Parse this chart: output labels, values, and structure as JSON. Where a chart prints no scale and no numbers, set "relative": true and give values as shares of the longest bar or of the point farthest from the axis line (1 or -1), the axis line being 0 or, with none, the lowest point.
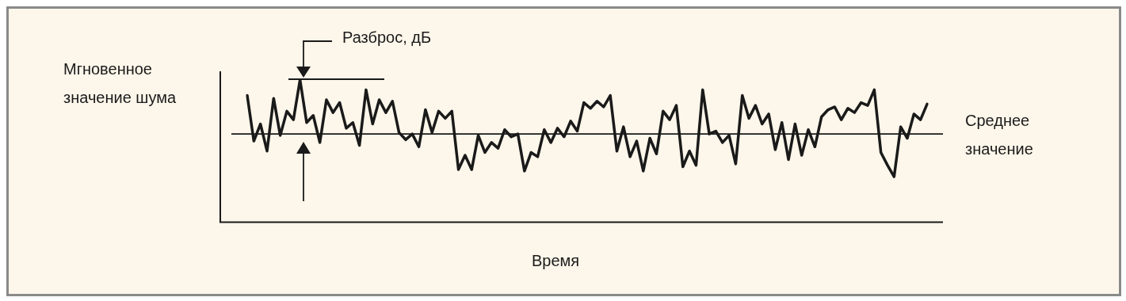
{
  "chart_data": {
    "type": "line",
    "relative": true,
    "xlabel": "Время",
    "ylabel": "Мгновенное значение шума",
    "annotations": [
      "Разброс, дБ"
    ],
    "marker": "none",
    "line_style": "solid",
    "ref_lines": [
      {
        "axis": "y",
        "value": 0.62,
        "label": "Среднее значение"
      }
    ],
    "categories": [
      null,
      null,
      null,
      null,
      null,
      null,
      null,
      null,
      null,
      null,
      null,
      null,
      null,
      null,
      null,
      null,
      null,
      null,
      null,
      null,
      null,
      null,
      null,
      null,
      null,
      null,
      null,
      null,
      null,
      null,
      null,
      null,
      null,
      null,
      null,
      null,
      null,
      null,
      null,
      null,
      null,
      null,
      null,
      null,
      null,
      null,
      null,
      null,
      null,
      null,
      null,
      null,
      null,
      null,
      null,
      null,
      null,
      null,
      null,
      null,
      null,
      null,
      null,
      null,
      null,
      null,
      null,
      null,
      null,
      null,
      null,
      null,
      null,
      null,
      null,
      null,
      null,
      null,
      null,
      null,
      null,
      null,
      null,
      null,
      null,
      null,
      null,
      null,
      null,
      null,
      null,
      null,
      null,
      null,
      null,
      null,
      null,
      null,
      null,
      null,
      null,
      null,
      null,
      null
    ],
    "series": [
      {
        "color": "#1a1a1a",
        "values": [
          0.89,
          0.57,
          0.69,
          0.5,
          0.87,
          0.61,
          0.78,
          0.72,
          1.0,
          0.7,
          0.75,
          0.56,
          0.86,
          0.77,
          0.84,
          0.66,
          0.7,
          0.54,
          0.93,
          0.69,
          0.86,
          0.77,
          0.85,
          0.63,
          0.58,
          0.62,
          0.53,
          0.79,
          0.63,
          0.78,
          0.73,
          0.78,
          0.37,
          0.47,
          0.37,
          0.61,
          0.49,
          0.56,
          0.52,
          0.65,
          0.6,
          0.62,
          0.36,
          0.49,
          0.46,
          0.65,
          0.56,
          0.66,
          0.6,
          0.71,
          0.64,
          0.84,
          0.8,
          0.85,
          0.81,
          0.89,
          0.5,
          0.67,
          0.46,
          0.57,
          0.36,
          0.59,
          0.48,
          0.78,
          0.72,
          0.82,
          0.39,
          0.5,
          0.4,
          0.93,
          0.62,
          0.64,
          0.56,
          0.61,
          0.41,
          0.89,
          0.73,
          0.82,
          0.69,
          0.76,
          0.51,
          0.7,
          0.44,
          0.69,
          0.47,
          0.65,
          0.53,
          0.74,
          0.79,
          0.81,
          0.72,
          0.8,
          0.77,
          0.84,
          0.82,
          0.93,
          0.49,
          0.4,
          0.32,
          0.67,
          0.59,
          0.76,
          0.72,
          0.83
        ]
      }
    ]
  }
}
